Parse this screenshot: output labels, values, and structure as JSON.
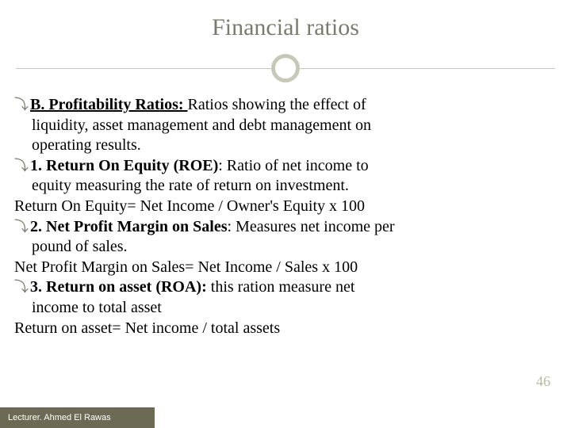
{
  "title": "Financial ratios",
  "colors": {
    "title_text": "#7a7a6e",
    "divider": "#c8c8b8",
    "circle_border": "#c8c8b8",
    "body_text": "#000000",
    "bullet_icon": "#7a7a6e",
    "page_num": "#b8b8a8",
    "footer_bg": "#6b6b55",
    "footer_text": "#ffffff",
    "background": "#ffffff"
  },
  "typography": {
    "title_fontsize": 30,
    "body_fontsize": 20,
    "footer_fontsize": 11,
    "pagenum_fontsize": 18,
    "family": "Georgia"
  },
  "bullets": {
    "b1_head": "B. Profitability Ratios: ",
    "b1_rest": "Ratios showing the effect of",
    "b1_cont1": "liquidity, asset management and debt management on",
    "b1_cont2": "operating results.",
    "b2_head": "1. Return On Equity (ROE)",
    "b2_rest": ": Ratio of net income to",
    "b2_cont1": "equity measuring the rate of return on investment.",
    "b2_line2": "Return On Equity= Net Income / Owner's Equity x 100",
    "b3_head": "2. Net Profit Margin on Sales",
    "b3_rest": ": Measures net income per",
    "b3_cont1": "pound of sales.",
    "b3_line2": "Net Profit Margin on Sales= Net Income / Sales x 100",
    "b4_head": "3. Return on asset (ROA): ",
    "b4_rest": "this ration measure net",
    "b4_cont1": "income to total asset",
    "b4_line2": "Return on asset= Net income / total assets"
  },
  "page_number": "46",
  "footer": "Lecturer. Ahmed El Rawas"
}
